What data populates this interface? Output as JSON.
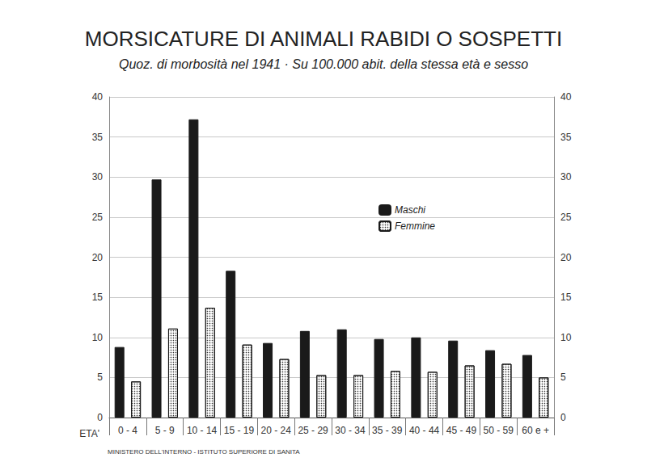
{
  "chart_data": {
    "type": "bar",
    "title": "MORSICATURE DI ANIMALI RABIDI O SOSPETTI",
    "subtitle": "Quoz. di morbosità nel 1941 · Su 100.000 abit. della stessa età e sesso",
    "x_label": "ETA'",
    "footer": "MINISTERO DELL'INTERNO - ISTITUTO SUPERIORE DI SANITA",
    "categories": [
      "0 - 4",
      "5 - 9",
      "10 - 14",
      "15 - 19",
      "20 - 24",
      "25 - 29",
      "30 - 34",
      "35 - 39",
      "40 - 44",
      "45 - 49",
      "50 - 59",
      "60 e +"
    ],
    "series": [
      {
        "name": "Maschi",
        "color": "#1a1a1a",
        "values": [
          8.8,
          29.7,
          37.2,
          18.3,
          9.3,
          10.8,
          11.0,
          9.8,
          10.0,
          9.6,
          8.4,
          7.8
        ]
      },
      {
        "name": "Femmine",
        "color": "#ffffff",
        "values": [
          4.5,
          11.1,
          13.7,
          9.1,
          7.3,
          5.3,
          5.3,
          5.8,
          5.7,
          6.5,
          6.7,
          5.0
        ]
      }
    ],
    "ylim": [
      0,
      40
    ],
    "yticks": [
      0,
      5,
      10,
      15,
      20,
      25,
      30,
      35,
      40
    ],
    "y2lim": [
      0,
      40
    ],
    "y2ticks": [
      0,
      5,
      10,
      15,
      20,
      25,
      30,
      35,
      40
    ],
    "grid": true,
    "legend": "right"
  }
}
